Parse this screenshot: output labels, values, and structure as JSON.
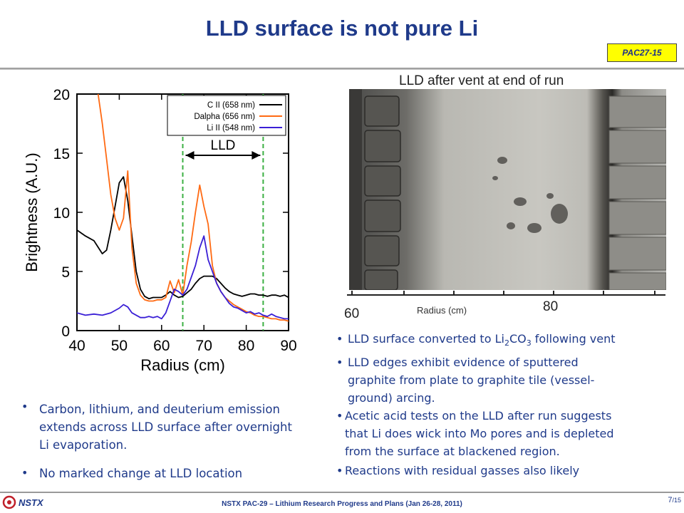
{
  "slide": {
    "title": "LLD surface is not pure Li",
    "badge": "PAC27-15"
  },
  "chart_data": {
    "type": "line",
    "title": "",
    "xlabel": "Radius (cm)",
    "ylabel": "Brightness (A.U.)",
    "xlim": [
      40,
      90
    ],
    "ylim": [
      0,
      20
    ],
    "x_ticks": [
      "40",
      "50",
      "60",
      "70",
      "80",
      "90"
    ],
    "y_ticks": [
      "0",
      "5",
      "10",
      "15",
      "20"
    ],
    "legend_position": "top-right",
    "annotations": [
      {
        "text": "LLD",
        "type": "double-arrow",
        "from": 65,
        "to": 84
      }
    ],
    "vlines": [
      65,
      84
    ],
    "series": [
      {
        "name": "C II (658 nm)",
        "color": "#000000",
        "x": [
          40,
          42,
          44,
          46,
          47,
          48,
          49,
          50,
          51,
          52,
          53,
          54,
          55,
          56,
          57,
          58,
          59,
          60,
          61,
          62,
          63,
          64,
          65,
          66,
          67,
          68,
          69,
          70,
          71,
          72,
          73,
          74,
          75,
          76,
          77,
          78,
          79,
          80,
          81,
          82,
          83,
          84,
          85,
          86,
          87,
          88,
          89,
          90
        ],
        "y": [
          8.5,
          8.0,
          7.6,
          6.5,
          6.8,
          8.5,
          10.5,
          12.5,
          13.0,
          11.0,
          8.0,
          5.0,
          3.5,
          2.9,
          2.7,
          2.8,
          2.8,
          2.8,
          3.0,
          3.3,
          3.0,
          2.8,
          2.9,
          3.2,
          3.5,
          4.0,
          4.4,
          4.6,
          4.6,
          4.6,
          4.4,
          4.0,
          3.6,
          3.3,
          3.1,
          3.0,
          2.9,
          3.0,
          3.1,
          3.1,
          3.0,
          3.0,
          2.9,
          3.0,
          3.0,
          2.9,
          3.0,
          2.8
        ]
      },
      {
        "name": "Dalpha (656 nm)",
        "color": "#ff6a13",
        "x": [
          45,
          46,
          47,
          48,
          49,
          50,
          51,
          52,
          53,
          54,
          55,
          56,
          57,
          58,
          59,
          60,
          61,
          62,
          63,
          64,
          65,
          66,
          67,
          68,
          69,
          70,
          71,
          72,
          73,
          74,
          75,
          76,
          77,
          78,
          79,
          80,
          81,
          82,
          83,
          84,
          85,
          86,
          87,
          88,
          89,
          90
        ],
        "y": [
          20,
          17.5,
          14.5,
          11.5,
          9.5,
          8.5,
          9.5,
          13.5,
          7.0,
          4.0,
          3.0,
          2.6,
          2.5,
          2.5,
          2.6,
          2.6,
          2.8,
          4.2,
          3.2,
          4.3,
          3.0,
          5.5,
          7.5,
          10.0,
          12.3,
          10.5,
          9.0,
          5.5,
          4.0,
          3.3,
          2.8,
          2.5,
          2.2,
          2.0,
          1.8,
          1.6,
          1.5,
          1.3,
          1.2,
          1.2,
          1.1,
          1.0,
          1.0,
          0.9,
          0.9,
          0.8
        ]
      },
      {
        "name": "Li II (548 nm)",
        "color": "#3a1fd6",
        "x": [
          40,
          42,
          44,
          46,
          48,
          50,
          51,
          52,
          53,
          54,
          55,
          56,
          57,
          58,
          59,
          60,
          61,
          62,
          63,
          64,
          65,
          66,
          67,
          68,
          69,
          70,
          71,
          72,
          73,
          74,
          75,
          76,
          77,
          78,
          79,
          80,
          81,
          82,
          83,
          84,
          85,
          86,
          87,
          88,
          89,
          90
        ],
        "y": [
          1.5,
          1.3,
          1.4,
          1.3,
          1.5,
          1.9,
          2.2,
          2.0,
          1.5,
          1.3,
          1.1,
          1.1,
          1.2,
          1.1,
          1.2,
          1.0,
          1.5,
          2.5,
          3.5,
          3.3,
          3.0,
          3.5,
          4.5,
          5.5,
          7.0,
          8.0,
          6.0,
          5.0,
          4.0,
          3.3,
          2.8,
          2.3,
          2.0,
          1.9,
          1.7,
          1.5,
          1.6,
          1.4,
          1.5,
          1.3,
          1.2,
          1.4,
          1.2,
          1.1,
          1.0,
          1.0
        ]
      }
    ]
  },
  "photo": {
    "caption": "LLD after vent at end of run",
    "axis_label": "Radius (cm)",
    "tick_left": "60",
    "tick_right": "80"
  },
  "right_bullets": [
    {
      "pre": "LLD surface converted to  Li",
      "sub1": "2",
      "mid": "CO",
      "sub2": "3",
      "post": " following vent"
    },
    {
      "l1": "LLD edges exhibit evidence of sputtered",
      "l2": "graphite from plate to graphite tile (vessel-",
      "l3": "ground) arcing."
    },
    {
      "l1": "Acetic acid tests on the LLD after run suggests",
      "l2": "that Li does wick into Mo pores and is depleted",
      "l3": "from the surface at blackened region."
    },
    {
      "l1": "Reactions with residual gasses also likely"
    }
  ],
  "left_bullets": [
    "Carbon, lithium, and deuterium emission extends across LLD surface after overnight Li evaporation.",
    "No marked change at LLD location"
  ],
  "footer": {
    "logo_text": "NSTX",
    "text": "NSTX PAC-29 – Lithium Research Progress and Plans (Jan 26-28, 2011)",
    "page": "7",
    "page_total": "/15"
  },
  "colors": {
    "title": "#1f3a8a",
    "badge_bg": "#ffff00",
    "llc_lines": "#3cb043",
    "logo_red": "#c0202a"
  }
}
